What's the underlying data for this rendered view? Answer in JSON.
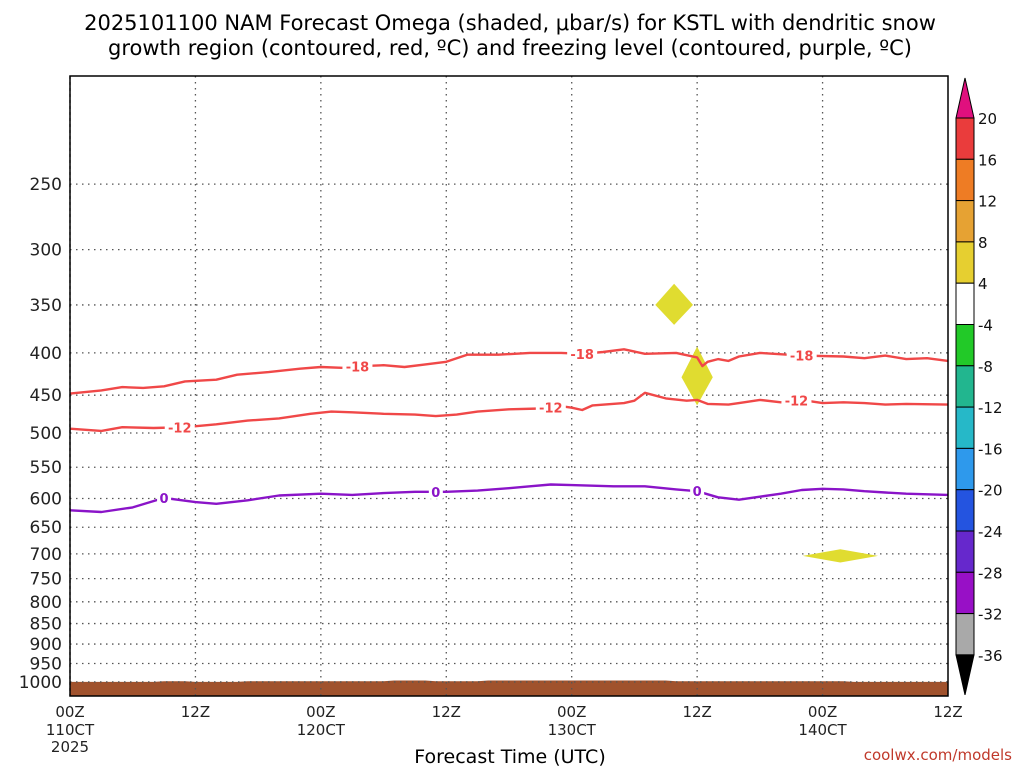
{
  "chart_data": {
    "type": "time-height",
    "title_line1": "2025101100 NAM Forecast Omega (shaded, μbar/s) for KSTL with dendritic snow",
    "title_line2": "growth region (contoured, red, ºC) and freezing level (contoured, purple, ºC)",
    "xlabel": "Forecast Time (UTC)",
    "credit": "coolwx.com/models",
    "pressure_range": [
      1040,
      185
    ],
    "y_ticks": [
      {
        "label": "250",
        "value": 250
      },
      {
        "label": "300",
        "value": 300
      },
      {
        "label": "350",
        "value": 350
      },
      {
        "label": "400",
        "value": 400
      },
      {
        "label": "450",
        "value": 450
      },
      {
        "label": "500",
        "value": 500
      },
      {
        "label": "550",
        "value": 550
      },
      {
        "label": "600",
        "value": 600
      },
      {
        "label": "650",
        "value": 650
      },
      {
        "label": "700",
        "value": 700
      },
      {
        "label": "750",
        "value": 750
      },
      {
        "label": "800",
        "value": 800
      },
      {
        "label": "850",
        "value": 850
      },
      {
        "label": "900",
        "value": 900
      },
      {
        "label": "950",
        "value": 950
      },
      {
        "label": "1000",
        "value": 1000
      }
    ],
    "time_range_h": [
      0,
      84
    ],
    "x_ticks": [
      {
        "h": 0,
        "label": "00Z",
        "sub": "110CT",
        "sub2": "2025"
      },
      {
        "h": 12,
        "label": "12Z",
        "sub": "",
        "sub2": ""
      },
      {
        "h": 24,
        "label": "00Z",
        "sub": "120CT",
        "sub2": ""
      },
      {
        "h": 36,
        "label": "12Z",
        "sub": "",
        "sub2": ""
      },
      {
        "h": 48,
        "label": "00Z",
        "sub": "130CT",
        "sub2": ""
      },
      {
        "h": 60,
        "label": "12Z",
        "sub": "",
        "sub2": ""
      },
      {
        "h": 72,
        "label": "00Z",
        "sub": "140CT",
        "sub2": ""
      },
      {
        "h": 84,
        "label": "12Z",
        "sub": "",
        "sub2": ""
      }
    ],
    "series": [
      {
        "name": "-18 C isotherm",
        "color": "#f04848",
        "label": "-18",
        "label_hours": [
          27.5,
          49.0,
          70.0
        ],
        "points": [
          [
            0,
            448
          ],
          [
            3,
            444
          ],
          [
            5,
            440
          ],
          [
            7,
            441
          ],
          [
            9,
            439
          ],
          [
            11,
            433
          ],
          [
            14,
            431
          ],
          [
            16,
            425
          ],
          [
            19,
            422
          ],
          [
            22,
            418
          ],
          [
            24,
            416
          ],
          [
            26,
            417
          ],
          [
            28,
            415
          ],
          [
            30,
            414
          ],
          [
            32,
            416
          ],
          [
            34,
            413
          ],
          [
            36,
            410
          ],
          [
            38,
            402
          ],
          [
            41,
            402
          ],
          [
            44,
            400
          ],
          [
            47,
            400
          ],
          [
            49,
            401
          ],
          [
            51,
            399
          ],
          [
            53,
            396
          ],
          [
            55,
            401
          ],
          [
            58,
            400
          ],
          [
            60,
            405
          ],
          [
            60.5,
            415
          ],
          [
            61,
            410
          ],
          [
            62,
            407
          ],
          [
            63,
            409
          ],
          [
            64,
            404
          ],
          [
            66,
            400
          ],
          [
            70,
            403
          ],
          [
            74,
            404
          ],
          [
            76,
            406
          ],
          [
            78,
            403
          ],
          [
            80,
            407
          ],
          [
            82,
            406
          ],
          [
            84,
            409
          ]
        ]
      },
      {
        "name": "-12 C isotherm",
        "color": "#f04848",
        "label": "-12",
        "label_hours": [
          10.5,
          46.0,
          69.5
        ],
        "points": [
          [
            0,
            494
          ],
          [
            3,
            497
          ],
          [
            5,
            492
          ],
          [
            8,
            493
          ],
          [
            11,
            492
          ],
          [
            14,
            488
          ],
          [
            17,
            483
          ],
          [
            20,
            480
          ],
          [
            23,
            474
          ],
          [
            25,
            471
          ],
          [
            27,
            472
          ],
          [
            30,
            474
          ],
          [
            33,
            475
          ],
          [
            35,
            477
          ],
          [
            37,
            475
          ],
          [
            39,
            471
          ],
          [
            42,
            468
          ],
          [
            45,
            467
          ],
          [
            47,
            464
          ],
          [
            48,
            466
          ],
          [
            49,
            469
          ],
          [
            50,
            463
          ],
          [
            53,
            460
          ],
          [
            54,
            457
          ],
          [
            55,
            447
          ],
          [
            57,
            454
          ],
          [
            59,
            457
          ],
          [
            60,
            456
          ],
          [
            61,
            461
          ],
          [
            63,
            462
          ],
          [
            64,
            460
          ],
          [
            66,
            456
          ],
          [
            68,
            459
          ],
          [
            70,
            456
          ],
          [
            72,
            460
          ],
          [
            74,
            459
          ],
          [
            76,
            460
          ],
          [
            78,
            462
          ],
          [
            80,
            461
          ],
          [
            84,
            462
          ]
        ]
      },
      {
        "name": "0 C freezing level",
        "color": "#8a14c8",
        "label": "0",
        "label_hours": [
          9.0,
          35.0,
          60.0
        ],
        "points": [
          [
            0,
            620
          ],
          [
            3,
            623
          ],
          [
            6,
            615
          ],
          [
            9,
            599
          ],
          [
            12,
            606
          ],
          [
            14,
            609
          ],
          [
            17,
            603
          ],
          [
            20,
            595
          ],
          [
            24,
            592
          ],
          [
            27,
            594
          ],
          [
            30,
            591
          ],
          [
            33,
            589
          ],
          [
            36,
            589
          ],
          [
            39,
            587
          ],
          [
            42,
            583
          ],
          [
            44,
            580
          ],
          [
            46,
            577
          ],
          [
            48,
            578
          ],
          [
            50,
            579
          ],
          [
            52,
            580
          ],
          [
            55,
            580
          ],
          [
            58,
            585
          ],
          [
            60,
            588
          ],
          [
            62,
            598
          ],
          [
            64,
            602
          ],
          [
            66,
            597
          ],
          [
            68,
            592
          ],
          [
            70,
            586
          ],
          [
            72,
            584
          ],
          [
            74,
            585
          ],
          [
            76,
            588
          ],
          [
            78,
            590
          ],
          [
            80,
            592
          ],
          [
            82,
            593
          ],
          [
            84,
            594
          ]
        ]
      }
    ],
    "shaded_features": [
      {
        "kind": "omega 4-8 blob",
        "h": 57.8,
        "p": 350,
        "width_h": 0.3,
        "height_p": 40,
        "color": "#e0dc30"
      },
      {
        "kind": "omega 4-8 streak",
        "h": 60.0,
        "p": 428,
        "width_h": 0.25,
        "height_p": 70,
        "color": "#e0dc30"
      },
      {
        "kind": "omega 4-8 blob",
        "h": 73.7,
        "p": 704,
        "width_h": 0.6,
        "height_p": 26,
        "color": "#e0dc30"
      }
    ],
    "surface_fill": {
      "color": "#a0522d",
      "bottom_p": 1040,
      "top_profile": [
        [
          0,
          1000
        ],
        [
          8,
          1000
        ],
        [
          9,
          998
        ],
        [
          11,
          998
        ],
        [
          12,
          1000
        ],
        [
          16,
          1000
        ],
        [
          17,
          998
        ],
        [
          30,
          998
        ],
        [
          31,
          996
        ],
        [
          34,
          996
        ],
        [
          35,
          998
        ],
        [
          39,
          998
        ],
        [
          40,
          996
        ],
        [
          57,
          996
        ],
        [
          58,
          998
        ],
        [
          74,
          998
        ],
        [
          75,
          1000
        ],
        [
          84,
          1000
        ]
      ]
    },
    "colorbar": {
      "labels": [
        "20",
        "16",
        "12",
        "8",
        "4",
        "-4",
        "-8",
        "-12",
        "-16",
        "-20",
        "-24",
        "-28",
        "-32",
        "-36"
      ],
      "segments": [
        {
          "color": "#ea3c3c"
        },
        {
          "color": "#ee7c24"
        },
        {
          "color": "#e6a233"
        },
        {
          "color": "#e6cf30"
        },
        {
          "color": "#ffffff"
        },
        {
          "color": "#22c928"
        },
        {
          "color": "#22b68f"
        },
        {
          "color": "#26b8c8"
        },
        {
          "color": "#2e99ec"
        },
        {
          "color": "#2454e0"
        },
        {
          "color": "#6628cc"
        },
        {
          "color": "#9810c6"
        },
        {
          "color": "#a9a9a9"
        }
      ],
      "top_arrow_color": "#e0107e",
      "bottom_arrow_color": "#000000"
    }
  }
}
